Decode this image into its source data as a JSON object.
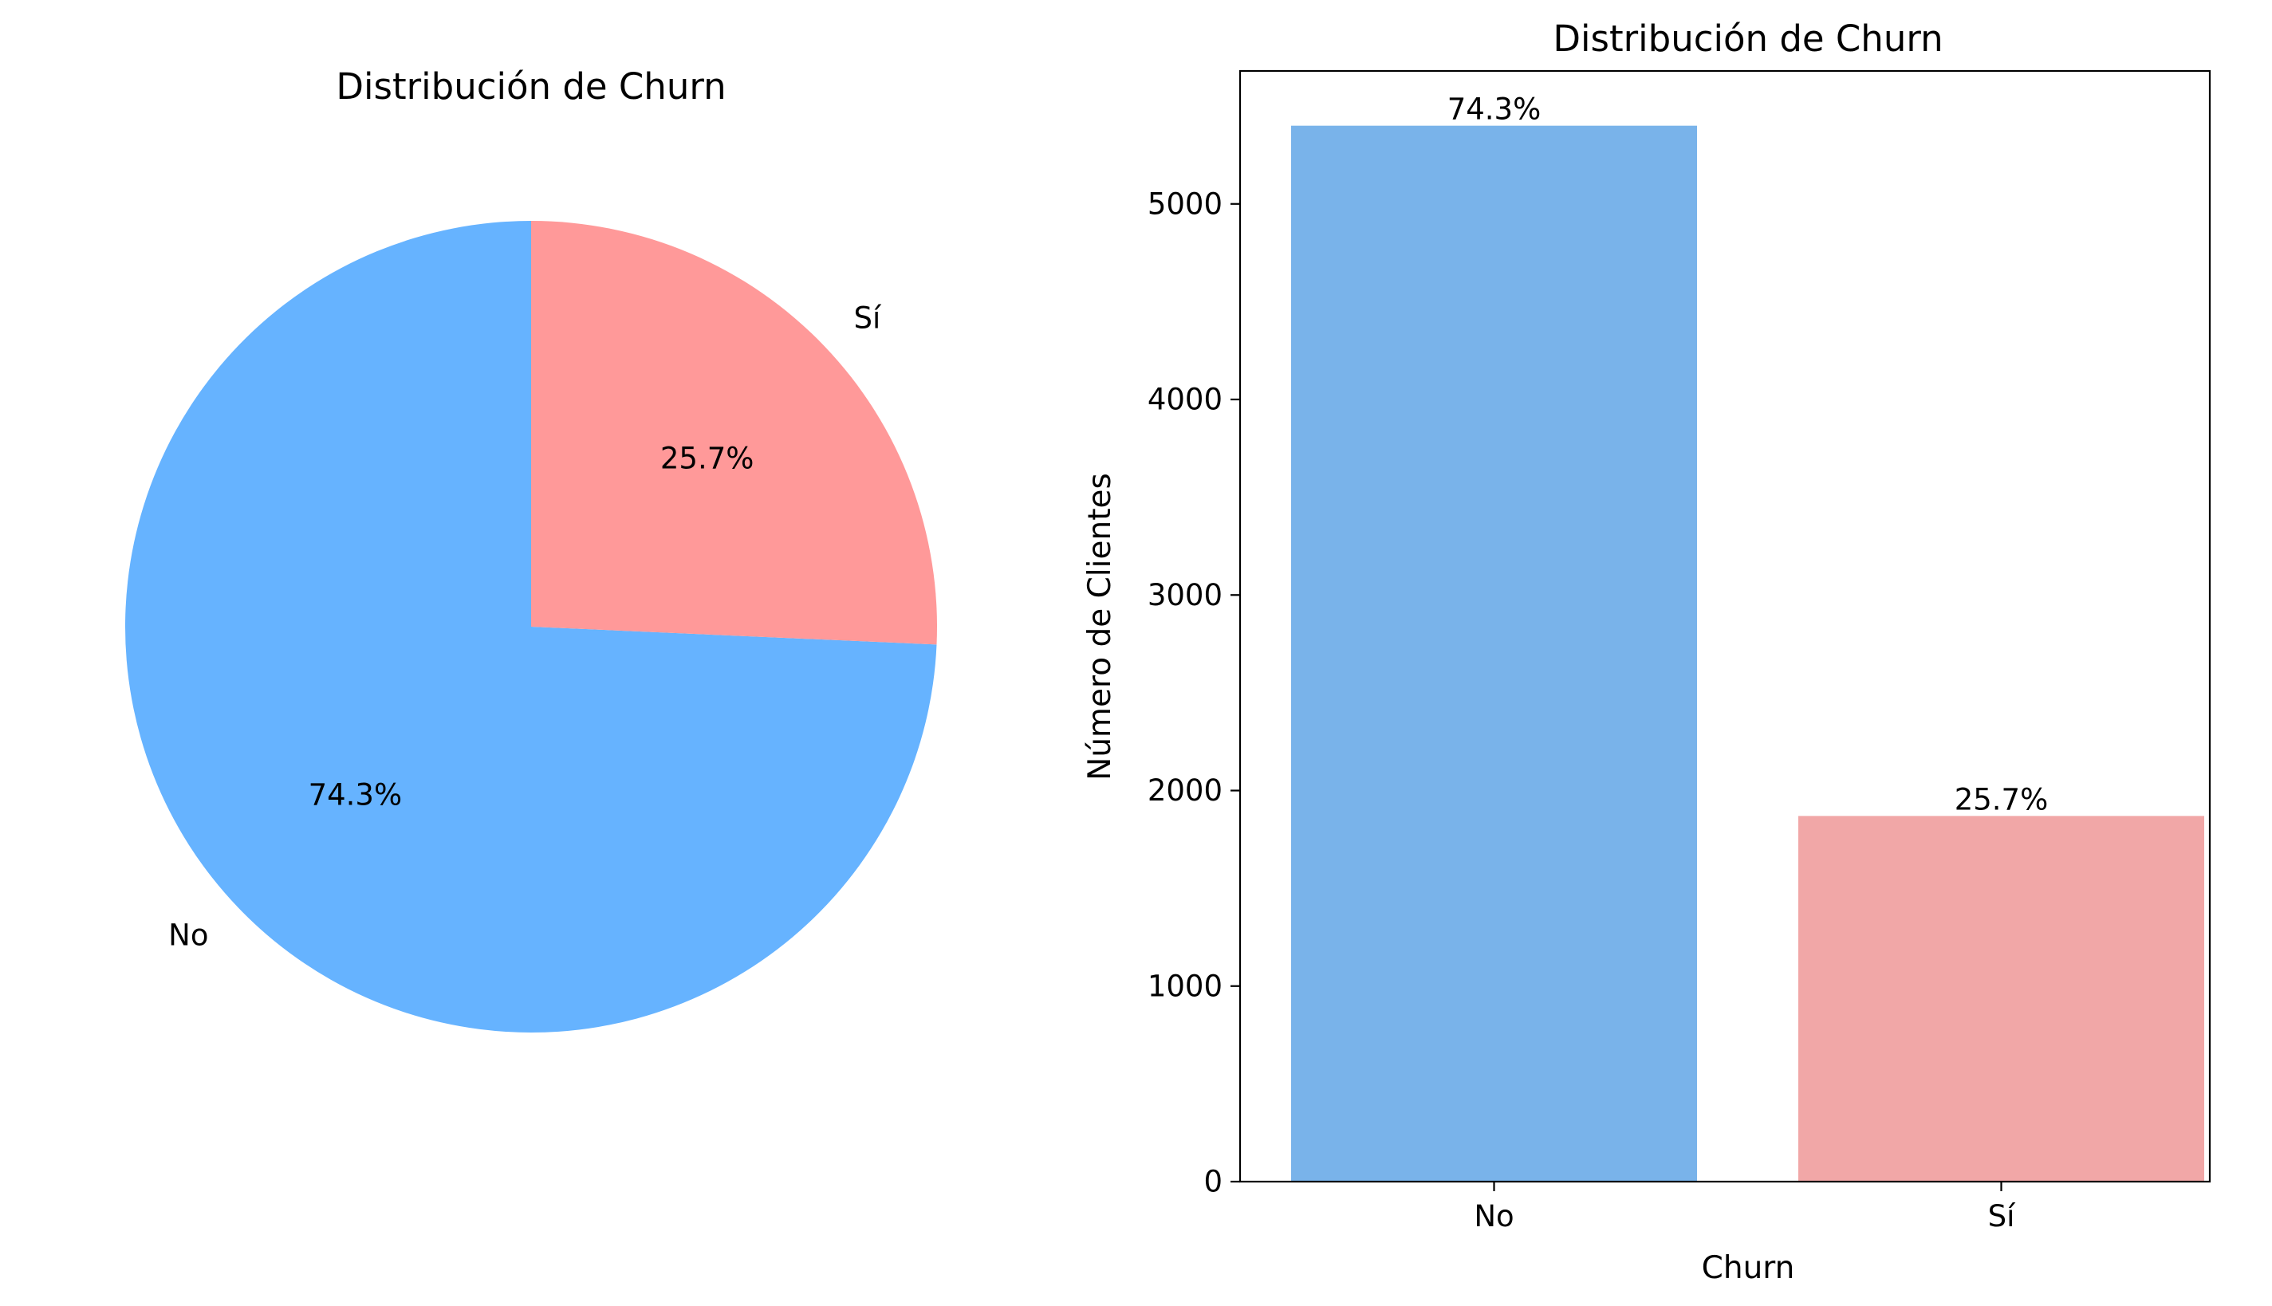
{
  "chart_data": [
    {
      "type": "pie",
      "title": "Distribución de Churn",
      "categories": [
        "No",
        "Sí"
      ],
      "values": [
        74.3,
        25.7
      ],
      "value_labels": [
        "74.3%",
        "25.7%"
      ],
      "colors": [
        "#66b3ff",
        "#ff9999"
      ],
      "start_angle_deg": 90,
      "legend": false
    },
    {
      "type": "bar",
      "title": "Distribución de Churn",
      "xlabel": "Churn",
      "ylabel": "Número de Clientes",
      "categories": [
        "No",
        "Sí"
      ],
      "values": [
        5400,
        1870
      ],
      "value_labels": [
        "74.3%",
        "25.7%"
      ],
      "colors": [
        "#79b3ea",
        "#f1a7a7"
      ],
      "ylim": [
        0,
        5680
      ],
      "yticks": [
        0,
        1000,
        2000,
        3000,
        4000,
        5000
      ],
      "grid": false,
      "legend": false
    }
  ]
}
